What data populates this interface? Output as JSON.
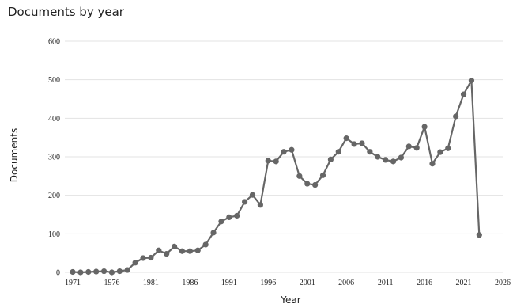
{
  "chart_data": {
    "type": "line",
    "title": "Documents by year",
    "xlabel": "Year",
    "ylabel": "Documents",
    "xlim": [
      1971,
      2026
    ],
    "ylim": [
      0,
      600
    ],
    "x_ticks": [
      1971,
      1976,
      1981,
      1986,
      1991,
      1996,
      2001,
      2006,
      2011,
      2016,
      2021,
      2026
    ],
    "y_ticks": [
      0,
      100,
      200,
      300,
      400,
      500,
      600
    ],
    "grid": true,
    "line_color": "#666666",
    "series": [
      {
        "x": [
          1971,
          1972,
          1973,
          1974,
          1975,
          1976,
          1977,
          1978,
          1979,
          1980,
          1981,
          1982,
          1983,
          1984,
          1985,
          1986,
          1987,
          1988,
          1989,
          1990,
          1991,
          1992,
          1993,
          1994,
          1995,
          1996,
          1997,
          1998,
          1999,
          2000,
          2001,
          2002,
          2003,
          2004,
          2005,
          2006,
          2007,
          2008,
          2009,
          2010,
          2011,
          2012,
          2013,
          2014,
          2015,
          2016,
          2017,
          2018,
          2019,
          2020,
          2021,
          2022,
          2023
        ],
        "values": [
          1,
          0,
          1,
          2,
          3,
          0,
          3,
          6,
          25,
          37,
          38,
          57,
          48,
          67,
          55,
          55,
          57,
          72,
          103,
          132,
          143,
          147,
          183,
          201,
          175,
          290,
          288,
          313,
          318,
          250,
          230,
          227,
          252,
          293,
          313,
          348,
          333,
          335,
          313,
          300,
          292,
          288,
          298,
          327,
          323,
          378,
          282,
          312,
          322,
          405,
          462,
          498,
          97
        ]
      }
    ]
  }
}
